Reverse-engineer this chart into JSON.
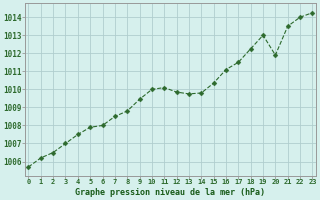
{
  "x": [
    0,
    1,
    2,
    3,
    4,
    5,
    6,
    7,
    8,
    9,
    10,
    11,
    12,
    13,
    14,
    15,
    16,
    17,
    18,
    19,
    20,
    21,
    22,
    23
  ],
  "y": [
    1005.7,
    1006.2,
    1006.5,
    1007.0,
    1007.5,
    1007.9,
    1008.0,
    1008.5,
    1008.8,
    1009.45,
    1010.0,
    1010.1,
    1009.85,
    1009.75,
    1009.8,
    1010.35,
    1011.1,
    1011.5,
    1012.25,
    1013.0,
    1011.9,
    1013.5,
    1014.0,
    1014.25
  ],
  "line_color": "#2d6a2d",
  "marker": "D",
  "marker_size": 2.5,
  "bg_color": "#d6f0ed",
  "grid_color": "#b0cece",
  "xlabel": "Graphe pression niveau de la mer (hPa)",
  "xlabel_color": "#1a5c1a",
  "ylabel_ticks": [
    1006,
    1007,
    1008,
    1009,
    1010,
    1011,
    1012,
    1013,
    1014
  ],
  "ylim": [
    1005.2,
    1014.8
  ],
  "xlim": [
    -0.3,
    23.3
  ],
  "tick_color": "#2d6a2d",
  "axis_color": "#999999",
  "xtick_labels": [
    "0",
    "1",
    "2",
    "3",
    "4",
    "5",
    "6",
    "7",
    "8",
    "9",
    "10",
    "11",
    "12",
    "13",
    "14",
    "15",
    "16",
    "17",
    "18",
    "19",
    "20",
    "21",
    "22",
    "23"
  ]
}
